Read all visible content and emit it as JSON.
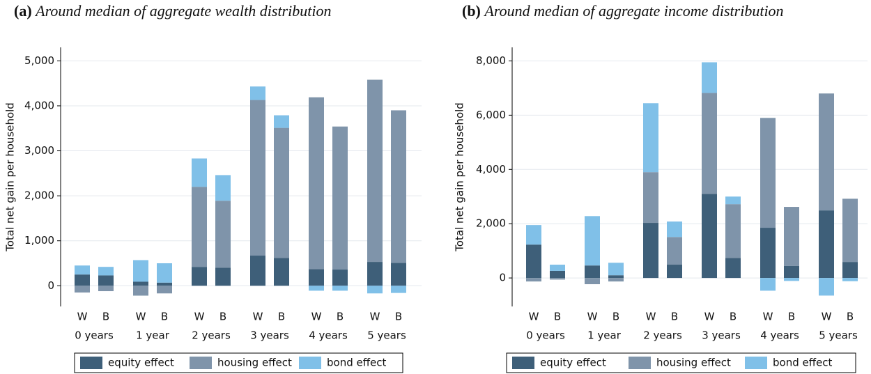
{
  "chart_data": [
    {
      "type": "stacked-bar",
      "panel": "(a)",
      "title": "Around median of aggregate wealth distribution",
      "ylabel": "Total net gain per household",
      "categories": [
        "W",
        "B",
        "W",
        "B",
        "W",
        "B",
        "W",
        "B",
        "W",
        "B",
        "W",
        "B"
      ],
      "groups": [
        "0 years",
        "1 year",
        "2 years",
        "3 years",
        "4 years",
        "5 years"
      ],
      "series": [
        {
          "name": "equity effect",
          "color": "#3e5f79",
          "values": [
            250,
            230,
            90,
            70,
            420,
            400,
            670,
            620,
            370,
            360,
            530,
            510
          ]
        },
        {
          "name": "housing effect",
          "color": "#7f94aa",
          "values": [
            -150,
            -120,
            -220,
            -170,
            1780,
            1490,
            3460,
            2890,
            3820,
            3180,
            4050,
            3390
          ]
        },
        {
          "name": "bond effect",
          "color": "#80c0e8",
          "values": [
            200,
            190,
            480,
            430,
            630,
            570,
            300,
            280,
            -110,
            -110,
            -170,
            -160
          ]
        }
      ],
      "ylim": [
        -460,
        5300
      ],
      "yticks": [
        0,
        {
          "value": 1000,
          "label": "1,000"
        },
        {
          "value": 2000,
          "label": "2,000"
        },
        {
          "value": 3000,
          "label": "3,000"
        },
        {
          "value": 4000,
          "label": "4,000"
        },
        {
          "value": 5000,
          "label": "5,000"
        }
      ],
      "grid": true,
      "legend": "bottom"
    },
    {
      "type": "stacked-bar",
      "panel": "(b)",
      "title": "Around median of aggregate income distribution",
      "ylabel": "Total net gain per household",
      "categories": [
        "W",
        "B",
        "W",
        "B",
        "W",
        "B",
        "W",
        "B",
        "W",
        "B",
        "W",
        "B"
      ],
      "groups": [
        "0 years",
        "1 year",
        "2 years",
        "3 years",
        "4 years",
        "5 years"
      ],
      "series": [
        {
          "name": "equity effect",
          "color": "#3e5f79",
          "values": [
            1230,
            260,
            460,
            100,
            2030,
            490,
            3100,
            740,
            1850,
            440,
            2490,
            590
          ]
        },
        {
          "name": "housing effect",
          "color": "#7f94aa",
          "values": [
            -130,
            -60,
            -230,
            -130,
            1870,
            1020,
            3720,
            1980,
            4050,
            2180,
            4310,
            2330
          ]
        },
        {
          "name": "bond effect",
          "color": "#80c0e8",
          "values": [
            720,
            230,
            1820,
            460,
            2540,
            570,
            1130,
            280,
            -470,
            -110,
            -650,
            -120
          ]
        }
      ],
      "ylim": [
        -1050,
        8500
      ],
      "yticks": [
        0,
        {
          "value": 2000,
          "label": "2,000"
        },
        {
          "value": 4000,
          "label": "4,000"
        },
        {
          "value": 6000,
          "label": "6,000"
        },
        {
          "value": 8000,
          "label": "8,000"
        }
      ],
      "grid": true,
      "legend": "bottom"
    }
  ]
}
